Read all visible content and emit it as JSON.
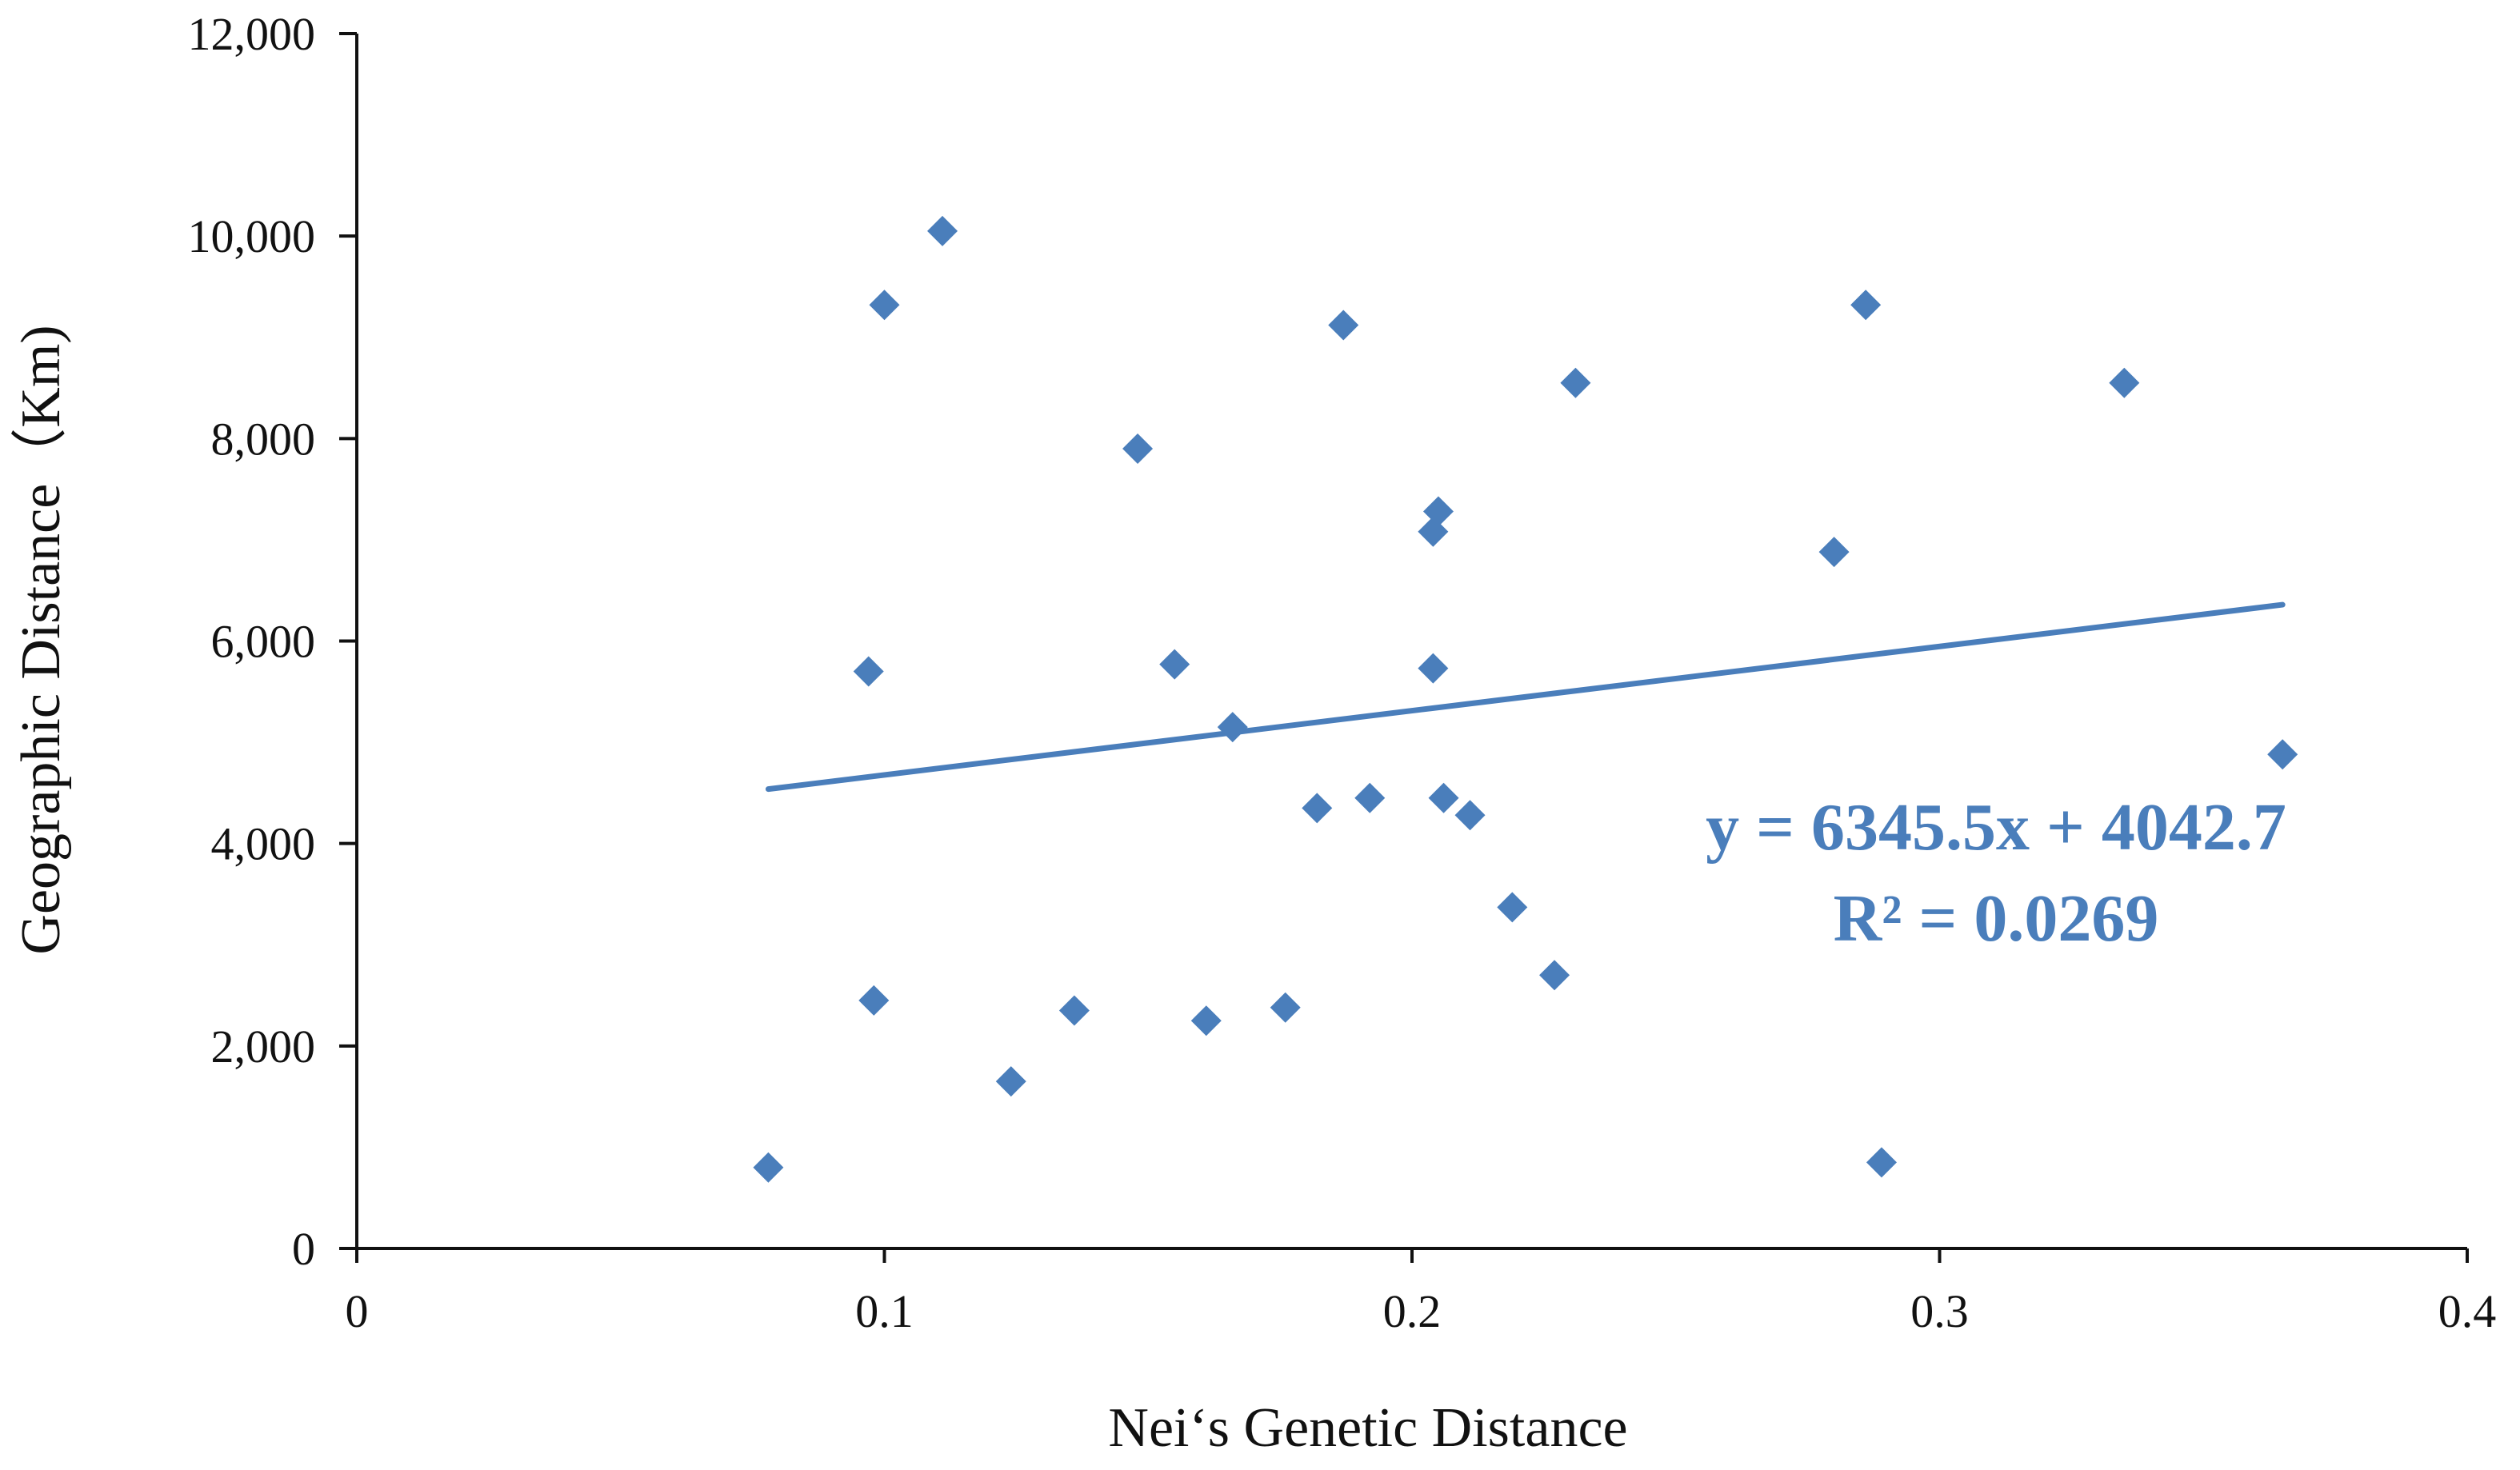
{
  "chart_data": {
    "type": "scatter",
    "title": "",
    "xlabel": "Nei‘s Genetic Distance",
    "ylabel": "Geographic Distance（Km)",
    "xlim": [
      0,
      0.4
    ],
    "ylim": [
      0,
      12000
    ],
    "x_ticks": [
      0,
      0.1,
      0.2,
      0.3,
      0.4
    ],
    "x_tick_labels": [
      "0",
      "0.1",
      "0.2",
      "0.3",
      "0.4"
    ],
    "y_ticks": [
      0,
      2000,
      4000,
      6000,
      8000,
      10000,
      12000
    ],
    "y_tick_labels": [
      "0",
      "2,000",
      "4,000",
      "6,000",
      "8,000",
      "10,000",
      "12,000"
    ],
    "grid": false,
    "legend": "none",
    "marker": "diamond",
    "color": "#4a7ebb",
    "series": [
      {
        "points": [
          [
            0.078,
            800
          ],
          [
            0.097,
            5700
          ],
          [
            0.098,
            2450
          ],
          [
            0.1,
            9320
          ],
          [
            0.111,
            10050
          ],
          [
            0.124,
            1650
          ],
          [
            0.136,
            2350
          ],
          [
            0.148,
            7900
          ],
          [
            0.155,
            5770
          ],
          [
            0.161,
            2250
          ],
          [
            0.166,
            5150
          ],
          [
            0.176,
            2380
          ],
          [
            0.182,
            4350
          ],
          [
            0.187,
            9120
          ],
          [
            0.192,
            4450
          ],
          [
            0.204,
            7080
          ],
          [
            0.204,
            5730
          ],
          [
            0.205,
            7280
          ],
          [
            0.206,
            4450
          ],
          [
            0.211,
            4280
          ],
          [
            0.219,
            3370
          ],
          [
            0.227,
            2700
          ],
          [
            0.231,
            8550
          ],
          [
            0.28,
            6880
          ],
          [
            0.286,
            9320
          ],
          [
            0.289,
            850
          ],
          [
            0.335,
            8550
          ],
          [
            0.365,
            4880
          ]
        ]
      }
    ],
    "trendline": {
      "x_range": [
        0.078,
        0.365
      ],
      "slope": 6345.5,
      "intercept": 4042.7
    },
    "annotations": {
      "equation": "y = 6345.5x + 4042.7",
      "r_squared": "R² = 0.0269"
    }
  }
}
